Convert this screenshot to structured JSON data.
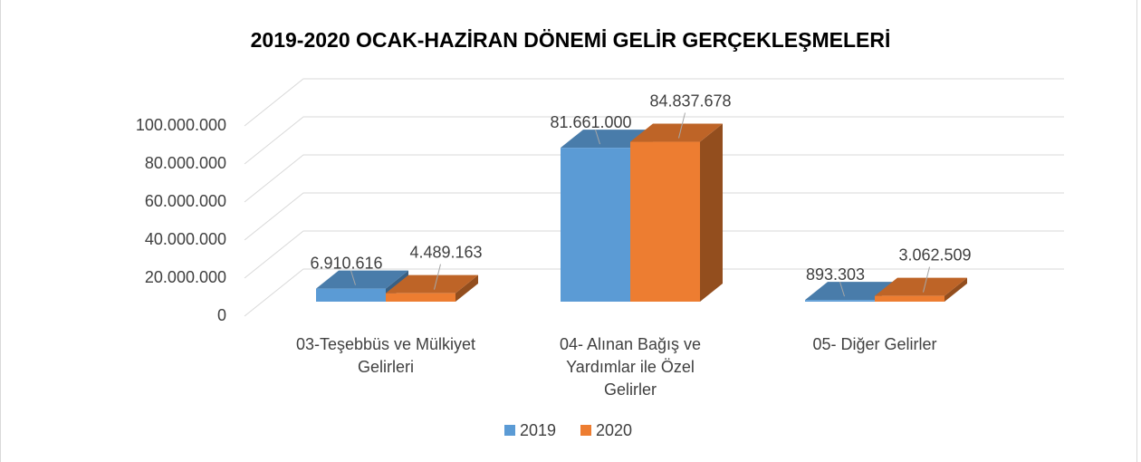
{
  "chart_data": {
    "type": "bar3d",
    "title": "2019-2020 OCAK-HAZİRAN DÖNEMİ GELİR GERÇEKLEŞMELERİ",
    "categories": [
      "03-Teşebbüs ve Mülkiyet Gelirleri",
      "04- Alınan Bağış ve Yardımlar ile Özel Gelirler",
      "05- Diğer Gelirler"
    ],
    "series": [
      {
        "name": "2019",
        "color": "#5b9bd5",
        "values": [
          6910616,
          81661000,
          893303
        ],
        "value_labels": [
          "6.910.616",
          "81.661.000",
          "893.303"
        ]
      },
      {
        "name": "2020",
        "color": "#ed7d31",
        "values": [
          4489163,
          84837678,
          3062509
        ],
        "value_labels": [
          "4.489.163",
          "84.837.678",
          "3.062.509"
        ]
      }
    ],
    "ylim": [
      0,
      100000000
    ],
    "yticks": [
      0,
      {
        "value": 20000000,
        "label": "20.000.000"
      },
      {
        "value": 40000000,
        "label": "40.000.000"
      },
      {
        "value": 60000000,
        "label": "60.000.000"
      },
      {
        "value": 80000000,
        "label": "80.000.000"
      },
      {
        "value": 100000000,
        "label": "100.000.000"
      }
    ],
    "grid": true,
    "legend": "bottom"
  }
}
